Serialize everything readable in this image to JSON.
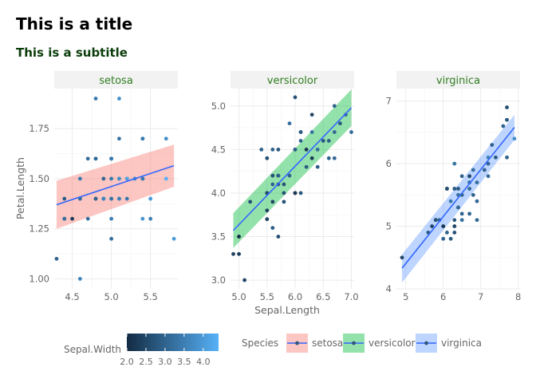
{
  "chart_data": {
    "type": "scatter",
    "title": "This is a title",
    "subtitle": "This is a subtitle",
    "xlabel": "Sepal.Length",
    "ylabel": "Petal.Length",
    "grid": true,
    "colors": {
      "panel_strip": "#f2f2f2",
      "strip_text": "#2f7d1f",
      "grid": "#ebebeb",
      "axis_text": "#666666",
      "fit_line": "#3366ff",
      "point_low": "#132b43",
      "point_high": "#56b1f7"
    },
    "colorbar": {
      "title": "Sepal.Width",
      "range": [
        2.0,
        4.4
      ],
      "ticks": [
        2.0,
        2.5,
        3.0,
        3.5,
        4.0
      ],
      "tick_labels": [
        "2.0",
        "2.5",
        "3.0",
        "3.5",
        "4.0"
      ]
    },
    "legend": {
      "title": "Species",
      "position": "bottom",
      "entries": [
        {
          "name": "setosa",
          "fill": "#f8766d"
        },
        {
          "name": "versicolor",
          "fill": "#00ba38"
        },
        {
          "name": "virginica",
          "fill": "#619cff"
        }
      ]
    },
    "panels": [
      {
        "name": "setosa",
        "xlim": [
          4.27,
          5.85
        ],
        "ylim": [
          0.95,
          1.95
        ],
        "xticks": [
          4.5,
          5.0,
          5.5
        ],
        "xtick_labels": [
          "4.5",
          "5.0",
          "5.5"
        ],
        "yticks": [
          1.0,
          1.25,
          1.5,
          1.75
        ],
        "ytick_labels": [
          "1.00",
          "1.25",
          "1.50",
          "1.75"
        ],
        "fit": {
          "x": [
            4.3,
            5.8
          ],
          "y": [
            1.37,
            1.565
          ],
          "se_low": [
            1.25,
            1.46
          ],
          "se_high": [
            1.49,
            1.67
          ]
        },
        "points": [
          {
            "x": 4.3,
            "y": 1.1,
            "c": 3.0
          },
          {
            "x": 4.4,
            "y": 1.4,
            "c": 2.9
          },
          {
            "x": 4.4,
            "y": 1.3,
            "c": 3.0
          },
          {
            "x": 4.4,
            "y": 1.3,
            "c": 3.2
          },
          {
            "x": 4.5,
            "y": 1.3,
            "c": 2.3
          },
          {
            "x": 4.6,
            "y": 1.4,
            "c": 3.1
          },
          {
            "x": 4.6,
            "y": 1.0,
            "c": 3.6
          },
          {
            "x": 4.6,
            "y": 1.5,
            "c": 3.4
          },
          {
            "x": 4.6,
            "y": 1.4,
            "c": 3.2
          },
          {
            "x": 4.7,
            "y": 1.3,
            "c": 3.2
          },
          {
            "x": 4.7,
            "y": 1.6,
            "c": 3.2
          },
          {
            "x": 4.8,
            "y": 1.6,
            "c": 3.4
          },
          {
            "x": 4.8,
            "y": 1.4,
            "c": 3.0
          },
          {
            "x": 4.8,
            "y": 1.9,
            "c": 3.4
          },
          {
            "x": 4.8,
            "y": 1.6,
            "c": 3.1
          },
          {
            "x": 4.8,
            "y": 1.4,
            "c": 3.0
          },
          {
            "x": 4.9,
            "y": 1.4,
            "c": 3.0
          },
          {
            "x": 4.9,
            "y": 1.5,
            "c": 3.1
          },
          {
            "x": 4.9,
            "y": 1.4,
            "c": 3.6
          },
          {
            "x": 5.0,
            "y": 1.4,
            "c": 3.6
          },
          {
            "x": 5.0,
            "y": 1.5,
            "c": 3.4
          },
          {
            "x": 5.0,
            "y": 1.6,
            "c": 3.0
          },
          {
            "x": 5.0,
            "y": 1.6,
            "c": 3.5
          },
          {
            "x": 5.0,
            "y": 1.2,
            "c": 3.2
          },
          {
            "x": 5.0,
            "y": 1.3,
            "c": 3.5
          },
          {
            "x": 5.0,
            "y": 1.4,
            "c": 3.3
          },
          {
            "x": 5.0,
            "y": 1.6,
            "c": 3.4
          },
          {
            "x": 5.1,
            "y": 1.4,
            "c": 3.5
          },
          {
            "x": 5.1,
            "y": 1.5,
            "c": 3.7
          },
          {
            "x": 5.1,
            "y": 1.7,
            "c": 3.3
          },
          {
            "x": 5.1,
            "y": 1.9,
            "c": 3.8
          },
          {
            "x": 5.1,
            "y": 1.5,
            "c": 3.8
          },
          {
            "x": 5.1,
            "y": 1.4,
            "c": 3.5
          },
          {
            "x": 5.2,
            "y": 1.5,
            "c": 3.5
          },
          {
            "x": 5.2,
            "y": 1.4,
            "c": 3.4
          },
          {
            "x": 5.2,
            "y": 1.5,
            "c": 4.1
          },
          {
            "x": 5.3,
            "y": 1.5,
            "c": 3.7
          },
          {
            "x": 5.4,
            "y": 1.7,
            "c": 3.9
          },
          {
            "x": 5.4,
            "y": 1.5,
            "c": 3.7
          },
          {
            "x": 5.4,
            "y": 1.7,
            "c": 3.4
          },
          {
            "x": 5.4,
            "y": 1.3,
            "c": 3.9
          },
          {
            "x": 5.4,
            "y": 1.5,
            "c": 3.4
          },
          {
            "x": 5.5,
            "y": 1.4,
            "c": 4.2
          },
          {
            "x": 5.5,
            "y": 1.3,
            "c": 3.5
          },
          {
            "x": 5.7,
            "y": 1.5,
            "c": 4.4
          },
          {
            "x": 5.7,
            "y": 1.7,
            "c": 3.8
          },
          {
            "x": 5.8,
            "y": 1.2,
            "c": 4.0
          },
          {
            "x": 5.5,
            "y": 1.4,
            "c": 4.0
          }
        ]
      },
      {
        "name": "versicolor",
        "xlim": [
          4.85,
          7.05
        ],
        "ylim": [
          2.9,
          5.2
        ],
        "xticks": [
          5.0,
          5.5,
          6.0,
          6.5,
          7.0
        ],
        "xtick_labels": [
          "5.0",
          "5.5",
          "6.0",
          "6.5",
          "7.0"
        ],
        "yticks": [
          3.0,
          3.5,
          4.0,
          4.5,
          5.0
        ],
        "ytick_labels": [
          "3.0",
          "3.5",
          "4.0",
          "4.5",
          "5.0"
        ],
        "fit": {
          "x": [
            4.9,
            7.0
          ],
          "y": [
            3.57,
            4.98
          ],
          "se_low": [
            3.37,
            4.77
          ],
          "se_high": [
            3.77,
            5.19
          ]
        },
        "points": [
          {
            "x": 4.9,
            "y": 3.3,
            "c": 2.4
          },
          {
            "x": 5.0,
            "y": 3.3,
            "c": 2.3
          },
          {
            "x": 5.0,
            "y": 3.5,
            "c": 2.0
          },
          {
            "x": 5.1,
            "y": 3.0,
            "c": 2.5
          },
          {
            "x": 5.2,
            "y": 3.9,
            "c": 2.7
          },
          {
            "x": 5.4,
            "y": 4.5,
            "c": 3.0
          },
          {
            "x": 5.5,
            "y": 4.0,
            "c": 2.3
          },
          {
            "x": 5.5,
            "y": 3.8,
            "c": 2.4
          },
          {
            "x": 5.5,
            "y": 3.7,
            "c": 2.4
          },
          {
            "x": 5.5,
            "y": 4.0,
            "c": 2.5
          },
          {
            "x": 5.5,
            "y": 4.4,
            "c": 2.6
          },
          {
            "x": 5.6,
            "y": 3.6,
            "c": 2.9
          },
          {
            "x": 5.6,
            "y": 4.5,
            "c": 3.0
          },
          {
            "x": 5.6,
            "y": 4.1,
            "c": 3.0
          },
          {
            "x": 5.6,
            "y": 3.9,
            "c": 2.5
          },
          {
            "x": 5.6,
            "y": 4.2,
            "c": 2.7
          },
          {
            "x": 5.7,
            "y": 4.5,
            "c": 2.8
          },
          {
            "x": 5.7,
            "y": 3.5,
            "c": 2.6
          },
          {
            "x": 5.7,
            "y": 4.2,
            "c": 3.0
          },
          {
            "x": 5.7,
            "y": 4.2,
            "c": 2.9
          },
          {
            "x": 5.7,
            "y": 4.1,
            "c": 2.8
          },
          {
            "x": 5.8,
            "y": 4.1,
            "c": 2.7
          },
          {
            "x": 5.8,
            "y": 4.0,
            "c": 2.7
          },
          {
            "x": 5.8,
            "y": 3.9,
            "c": 2.7
          },
          {
            "x": 5.9,
            "y": 4.8,
            "c": 3.2
          },
          {
            "x": 5.9,
            "y": 4.2,
            "c": 3.0
          },
          {
            "x": 6.0,
            "y": 4.0,
            "c": 2.2
          },
          {
            "x": 6.0,
            "y": 5.1,
            "c": 2.7
          },
          {
            "x": 6.0,
            "y": 4.5,
            "c": 3.4
          },
          {
            "x": 6.0,
            "y": 4.5,
            "c": 2.9
          },
          {
            "x": 6.0,
            "y": 4.0,
            "c": 2.2
          },
          {
            "x": 6.1,
            "y": 4.7,
            "c": 2.8
          },
          {
            "x": 6.1,
            "y": 4.0,
            "c": 2.8
          },
          {
            "x": 6.1,
            "y": 4.7,
            "c": 2.9
          },
          {
            "x": 6.1,
            "y": 4.6,
            "c": 3.0
          },
          {
            "x": 6.2,
            "y": 4.5,
            "c": 2.2
          },
          {
            "x": 6.2,
            "y": 4.3,
            "c": 2.9
          },
          {
            "x": 6.3,
            "y": 4.7,
            "c": 3.3
          },
          {
            "x": 6.3,
            "y": 4.9,
            "c": 2.5
          },
          {
            "x": 6.3,
            "y": 4.4,
            "c": 2.3
          },
          {
            "x": 6.4,
            "y": 4.5,
            "c": 3.2
          },
          {
            "x": 6.4,
            "y": 4.3,
            "c": 2.9
          },
          {
            "x": 6.5,
            "y": 4.6,
            "c": 2.8
          },
          {
            "x": 6.6,
            "y": 4.6,
            "c": 2.9
          },
          {
            "x": 6.6,
            "y": 4.4,
            "c": 3.0
          },
          {
            "x": 6.7,
            "y": 4.4,
            "c": 3.1
          },
          {
            "x": 6.7,
            "y": 5.0,
            "c": 3.0
          },
          {
            "x": 6.7,
            "y": 4.7,
            "c": 3.1
          },
          {
            "x": 6.8,
            "y": 4.8,
            "c": 2.8
          },
          {
            "x": 6.9,
            "y": 4.9,
            "c": 3.1
          },
          {
            "x": 7.0,
            "y": 4.7,
            "c": 3.2
          }
        ]
      },
      {
        "name": "virginica",
        "xlim": [
          4.75,
          8.05
        ],
        "ylim": [
          4.0,
          7.2
        ],
        "xticks": [
          5,
          6,
          7,
          8
        ],
        "xtick_labels": [
          "5",
          "6",
          "7",
          "8"
        ],
        "yticks": [
          4,
          5,
          6,
          7
        ],
        "ytick_labels": [
          "4",
          "5",
          "6",
          "7"
        ],
        "fit": {
          "x": [
            4.9,
            7.9
          ],
          "y": [
            4.33,
            6.58
          ],
          "se_low": [
            4.1,
            6.38
          ],
          "se_high": [
            4.55,
            6.78
          ]
        },
        "points": [
          {
            "x": 4.9,
            "y": 4.5,
            "c": 2.5
          },
          {
            "x": 5.6,
            "y": 4.9,
            "c": 2.8
          },
          {
            "x": 5.7,
            "y": 5.0,
            "c": 2.5
          },
          {
            "x": 5.8,
            "y": 5.1,
            "c": 2.7
          },
          {
            "x": 5.8,
            "y": 5.1,
            "c": 2.8
          },
          {
            "x": 5.8,
            "y": 5.1,
            "c": 2.7
          },
          {
            "x": 5.9,
            "y": 5.1,
            "c": 3.0
          },
          {
            "x": 6.0,
            "y": 5.0,
            "c": 2.2
          },
          {
            "x": 6.0,
            "y": 4.8,
            "c": 3.0
          },
          {
            "x": 6.1,
            "y": 5.6,
            "c": 2.6
          },
          {
            "x": 6.1,
            "y": 4.9,
            "c": 3.0
          },
          {
            "x": 6.2,
            "y": 5.4,
            "c": 3.4
          },
          {
            "x": 6.2,
            "y": 4.8,
            "c": 2.8
          },
          {
            "x": 6.3,
            "y": 6.0,
            "c": 3.3
          },
          {
            "x": 6.3,
            "y": 5.1,
            "c": 2.8
          },
          {
            "x": 6.3,
            "y": 5.0,
            "c": 2.5
          },
          {
            "x": 6.3,
            "y": 4.9,
            "c": 2.7
          },
          {
            "x": 6.3,
            "y": 5.6,
            "c": 3.4
          },
          {
            "x": 6.3,
            "y": 5.6,
            "c": 2.9
          },
          {
            "x": 6.4,
            "y": 5.3,
            "c": 2.7
          },
          {
            "x": 6.4,
            "y": 5.5,
            "c": 3.2
          },
          {
            "x": 6.4,
            "y": 5.6,
            "c": 2.8
          },
          {
            "x": 6.4,
            "y": 5.3,
            "c": 3.1
          },
          {
            "x": 6.5,
            "y": 5.8,
            "c": 3.0
          },
          {
            "x": 6.5,
            "y": 5.1,
            "c": 3.2
          },
          {
            "x": 6.5,
            "y": 5.5,
            "c": 3.0
          },
          {
            "x": 6.5,
            "y": 5.2,
            "c": 3.0
          },
          {
            "x": 6.7,
            "y": 5.8,
            "c": 2.5
          },
          {
            "x": 6.7,
            "y": 5.7,
            "c": 3.3
          },
          {
            "x": 6.7,
            "y": 5.2,
            "c": 3.0
          },
          {
            "x": 6.7,
            "y": 5.6,
            "c": 3.1
          },
          {
            "x": 6.7,
            "y": 5.7,
            "c": 3.3
          },
          {
            "x": 6.8,
            "y": 5.5,
            "c": 3.0
          },
          {
            "x": 6.8,
            "y": 5.9,
            "c": 3.2
          },
          {
            "x": 6.9,
            "y": 5.7,
            "c": 3.2
          },
          {
            "x": 6.9,
            "y": 5.4,
            "c": 3.1
          },
          {
            "x": 6.9,
            "y": 5.1,
            "c": 3.1
          },
          {
            "x": 7.1,
            "y": 5.9,
            "c": 3.0
          },
          {
            "x": 7.2,
            "y": 6.1,
            "c": 3.6
          },
          {
            "x": 7.2,
            "y": 6.0,
            "c": 3.0
          },
          {
            "x": 7.2,
            "y": 5.8,
            "c": 3.2
          },
          {
            "x": 7.3,
            "y": 6.3,
            "c": 2.9
          },
          {
            "x": 7.4,
            "y": 6.1,
            "c": 2.8
          },
          {
            "x": 7.6,
            "y": 6.6,
            "c": 3.0
          },
          {
            "x": 7.7,
            "y": 6.7,
            "c": 3.8
          },
          {
            "x": 7.7,
            "y": 6.9,
            "c": 2.6
          },
          {
            "x": 7.7,
            "y": 6.7,
            "c": 2.8
          },
          {
            "x": 7.7,
            "y": 6.1,
            "c": 3.0
          },
          {
            "x": 7.9,
            "y": 6.4,
            "c": 3.8
          },
          {
            "x": 6.1,
            "y": 5.6,
            "c": 2.6
          }
        ]
      }
    ]
  }
}
